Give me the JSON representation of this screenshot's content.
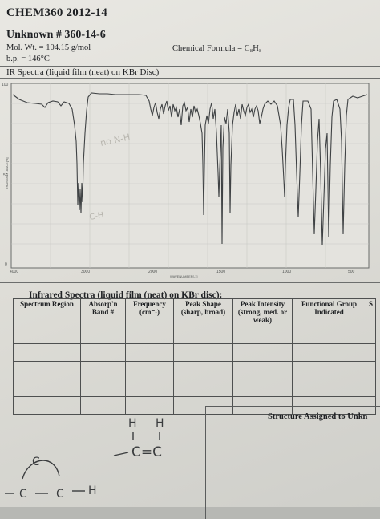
{
  "header": {
    "course": "CHEM360 2012-14",
    "unknown": "Unknown # 360-14-6",
    "mol_wt": "Mol. Wt. = 104.15 g/mol",
    "bp": "b.p. = 146°C",
    "formula": "Chemical Formula = C₈H₈"
  },
  "spectrum": {
    "label": "IR Spectra (liquid film (neat) on KBr Disc)",
    "y_ticks": [
      "100",
      "50",
      "0"
    ],
    "x_ticks": [
      "4000",
      "3000",
      "2000",
      "1500",
      "1000",
      "500"
    ],
    "y_axis_label": "TRANSMITTANCE[%]",
    "x_axis_label": "WAVENUMBER[-1]",
    "handwritten_notes": [
      "no N-H",
      "C-H"
    ]
  },
  "table": {
    "title": "Infrared Spectra (liquid film (neat) on KBr disc):",
    "columns": [
      "Spectrum Region",
      "Absorp'n Band #",
      "Frequency (cm⁻¹)",
      "Peak Shape (sharp, broad)",
      "Peak Intensity (strong, med. or weak)",
      "Functional Group Indicated",
      "S"
    ],
    "rows": [
      [
        "",
        "",
        "",
        "",
        "",
        "",
        ""
      ],
      [
        "",
        "",
        "",
        "",
        "",
        "",
        ""
      ],
      [
        "",
        "",
        "",
        "",
        "",
        "",
        ""
      ],
      [
        "",
        "",
        "",
        "",
        "",
        "",
        ""
      ],
      [
        "",
        "",
        "",
        "",
        "",
        "",
        ""
      ]
    ]
  },
  "structure": {
    "label": "Structure Assigned to Unkn",
    "sketch_text": [
      "H",
      "H",
      "C=C",
      "C",
      "C",
      "C",
      "H"
    ]
  }
}
